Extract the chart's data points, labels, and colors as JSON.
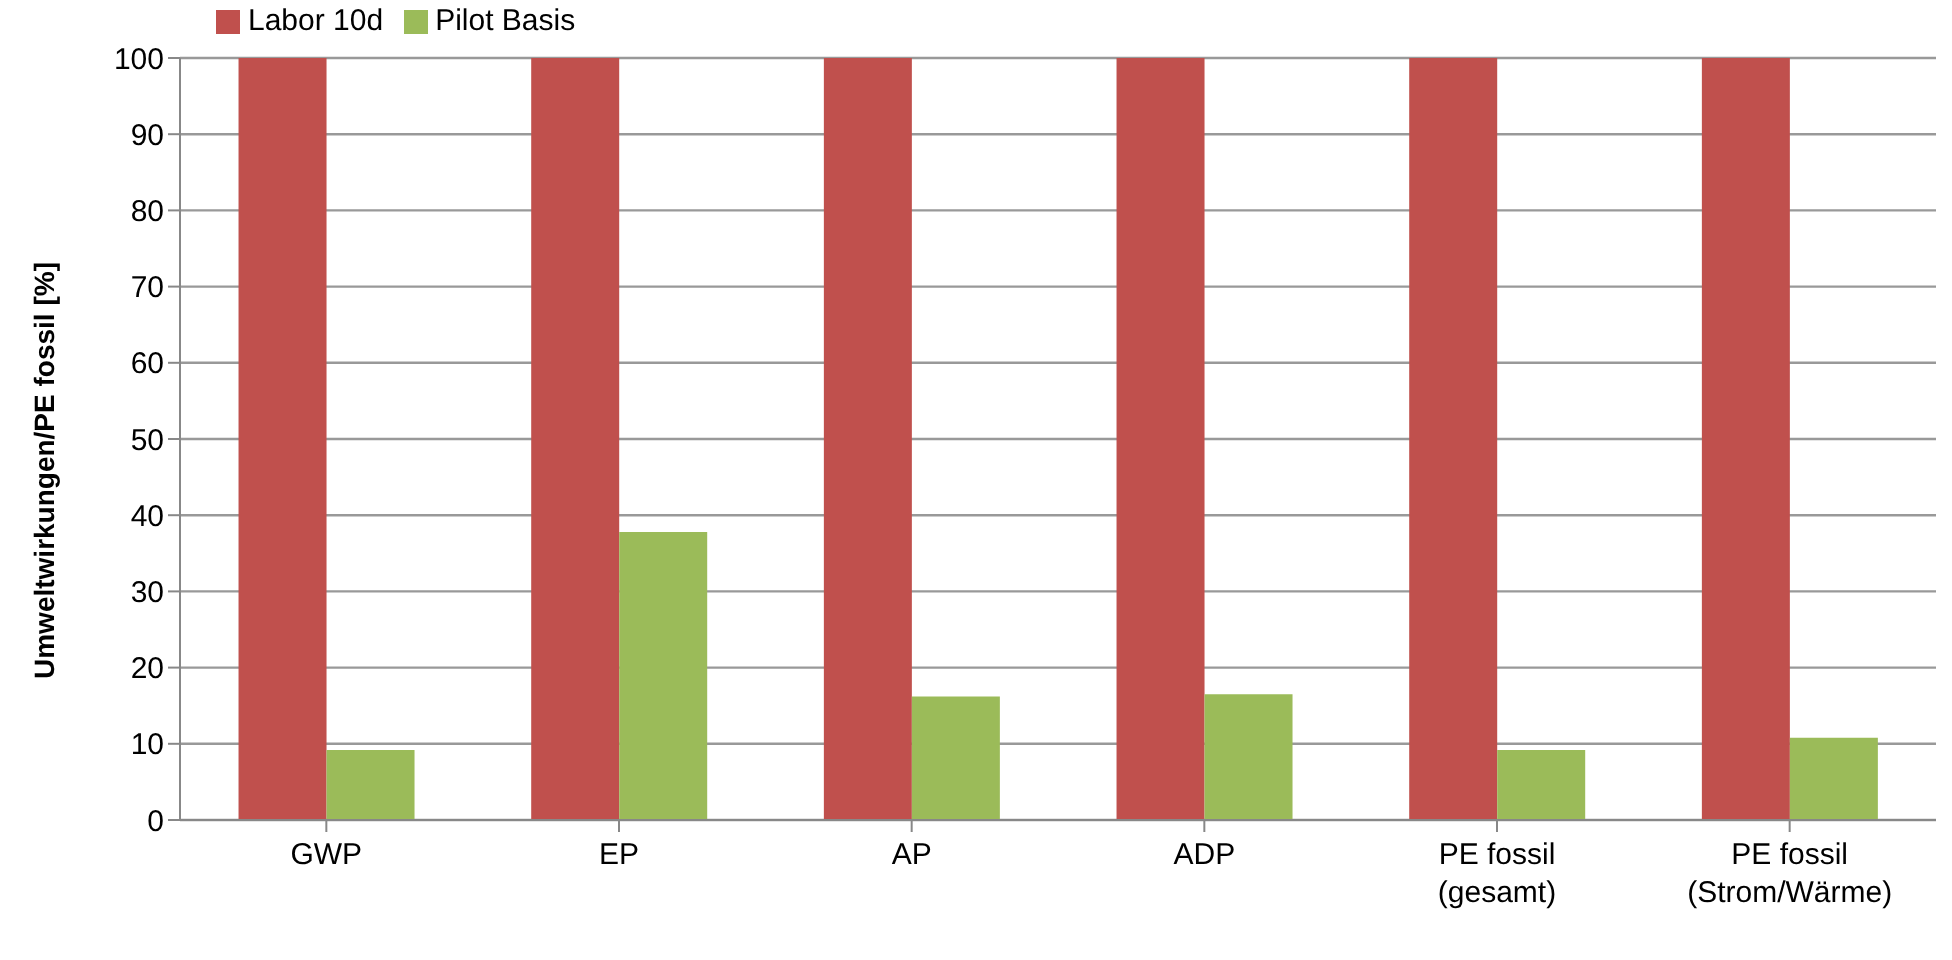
{
  "chart_data": {
    "type": "bar",
    "ylabel": "Umweltwirkungen/PE fossil [%]",
    "categories": [
      "GWP",
      "EP",
      "AP",
      "ADP",
      "PE fossil (gesamt)",
      "PE fossil (Strom/Wärme)"
    ],
    "series": [
      {
        "name": "Labor 10d",
        "color": "#c0504d",
        "values": [
          100,
          100,
          100,
          100,
          100,
          100
        ]
      },
      {
        "name": "Pilot Basis",
        "color": "#9bbb59",
        "values": [
          9.2,
          37.8,
          16.2,
          16.5,
          9.2,
          10.8
        ]
      }
    ],
    "ylim": [
      0,
      100
    ],
    "yticks": [
      0,
      10,
      20,
      30,
      40,
      50,
      60,
      70,
      80,
      90,
      100
    ],
    "grid": "y",
    "legend": "top left"
  }
}
